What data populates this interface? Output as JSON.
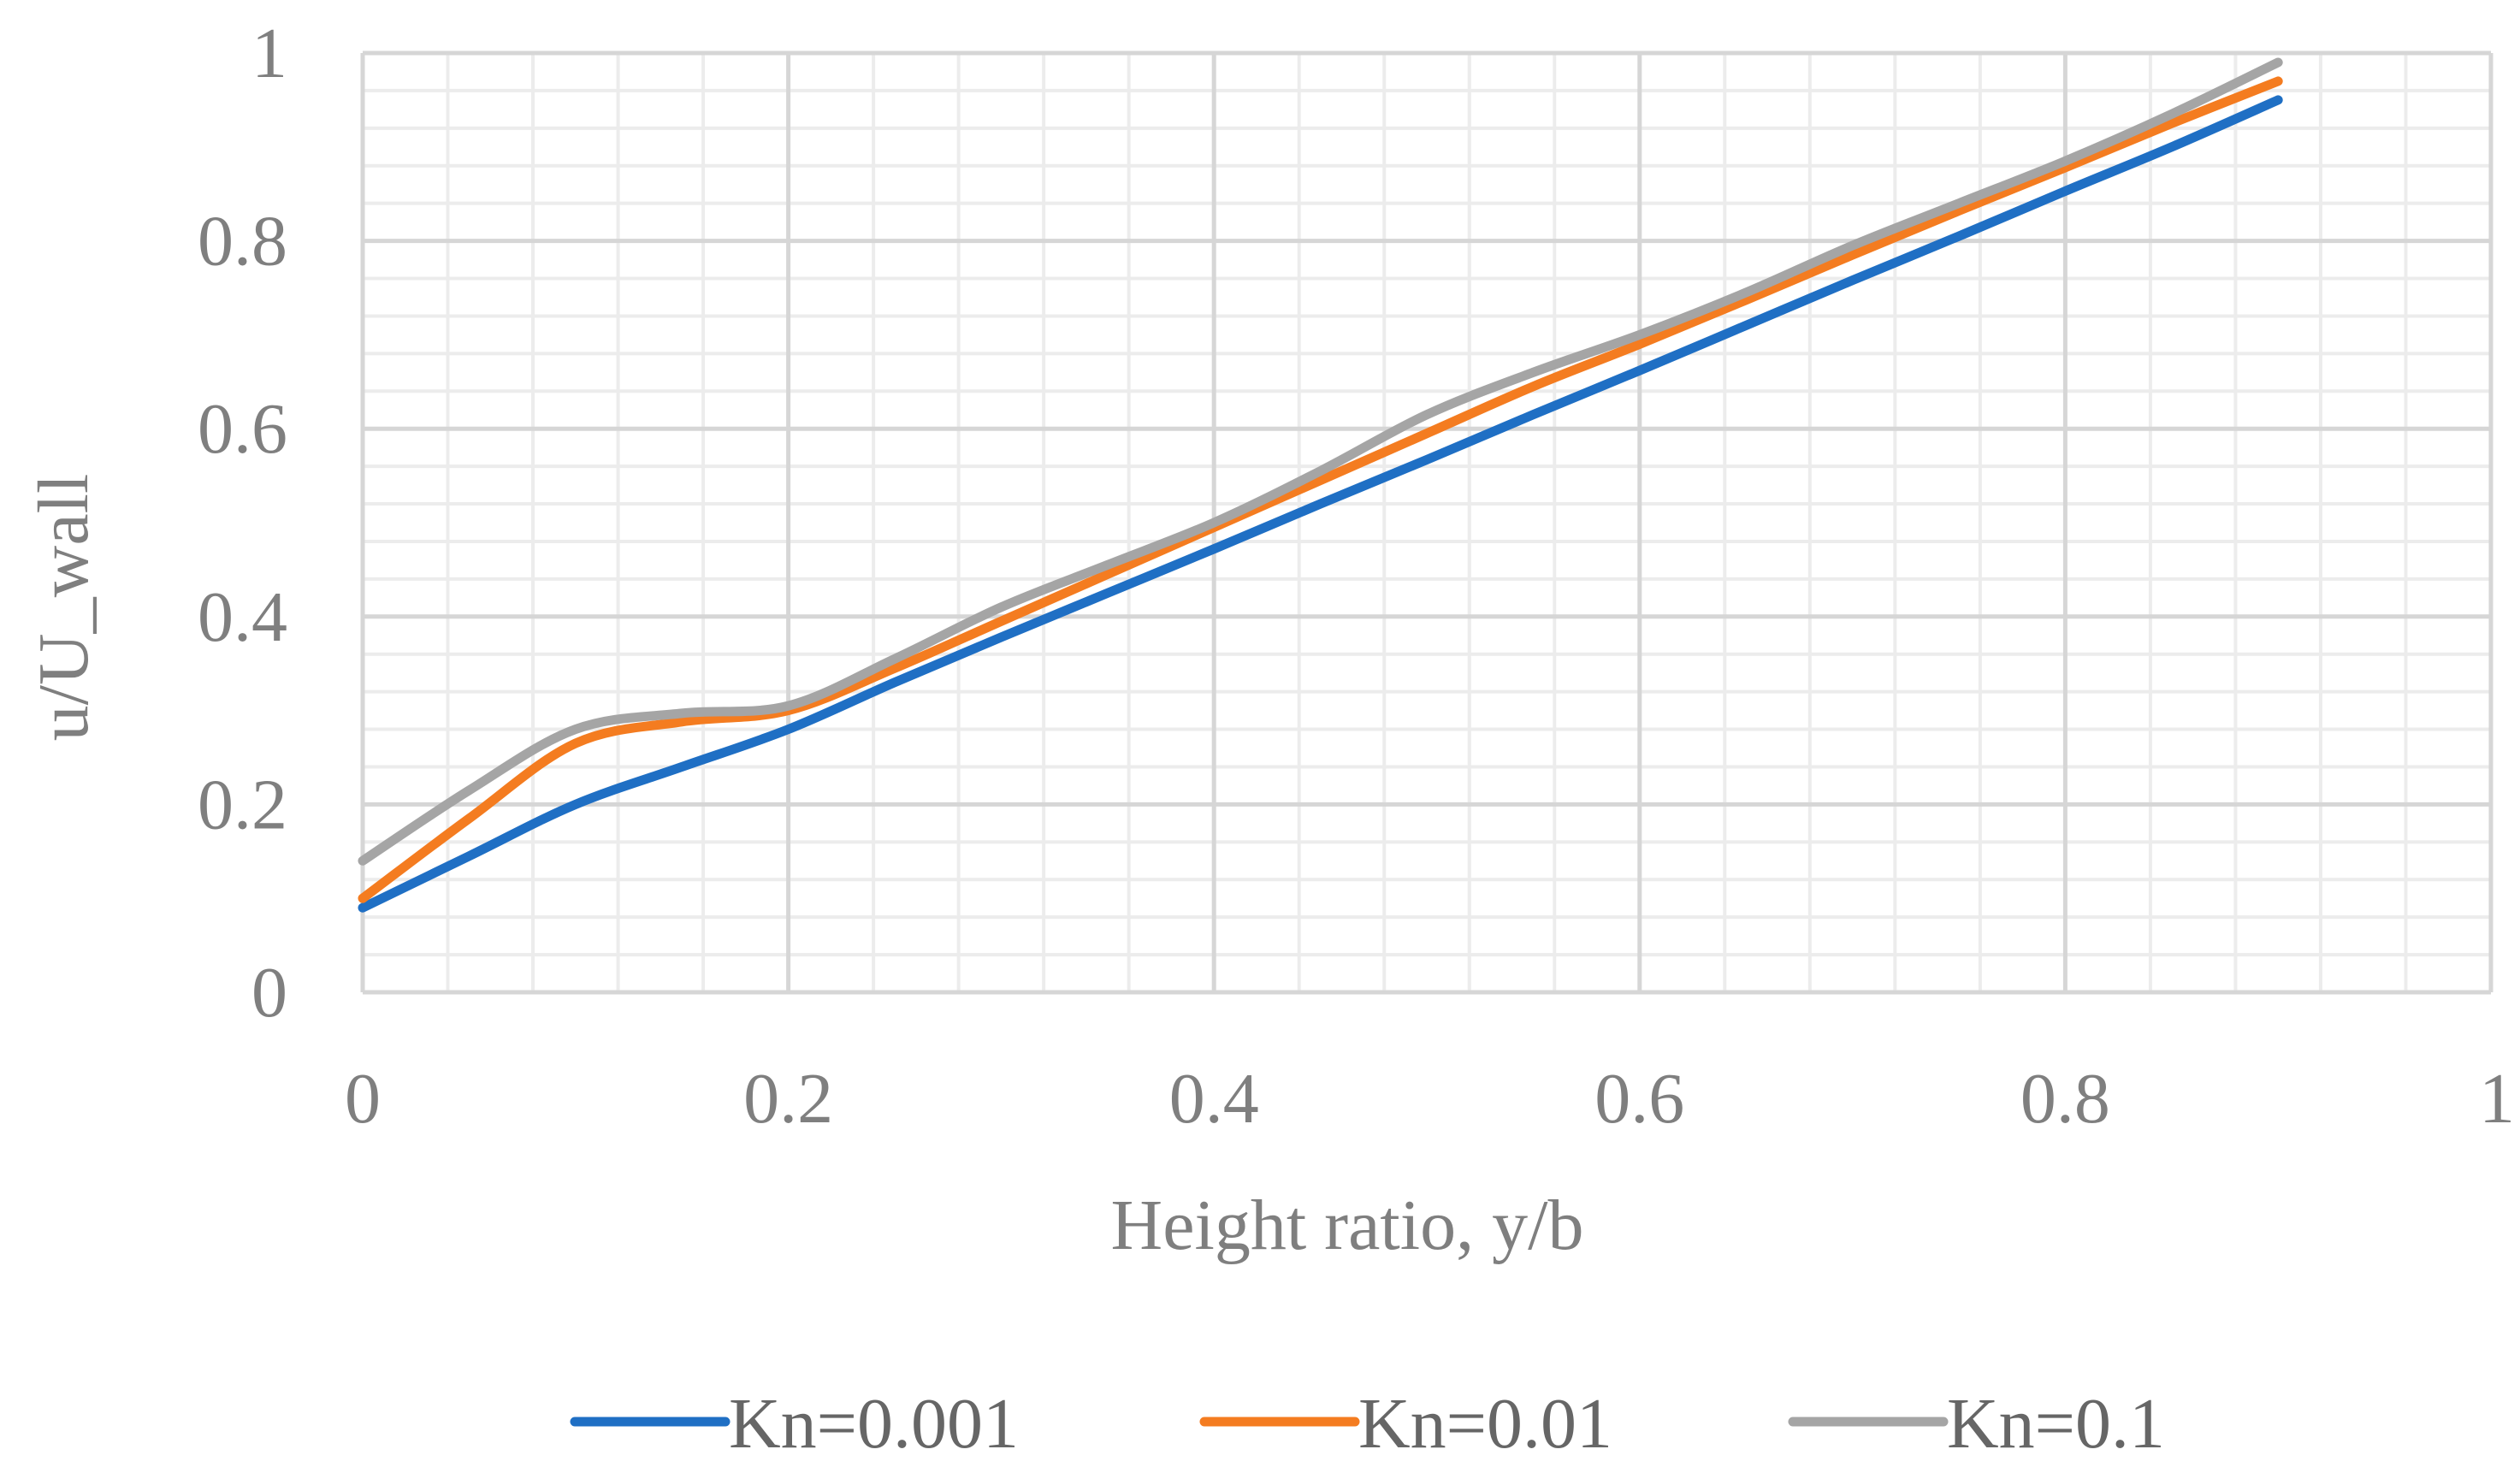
{
  "chart_data": {
    "type": "line",
    "title": "",
    "xlabel": "Height ratio, y/b",
    "ylabel": "u/U_wall",
    "xlim": [
      0,
      1
    ],
    "ylim": [
      0,
      1
    ],
    "x_ticks": [
      "0",
      "0.2",
      "0.4",
      "0.6",
      "0.8",
      "1"
    ],
    "y_ticks": [
      "0",
      "0.2",
      "0.4",
      "0.6",
      "0.8",
      "1"
    ],
    "grid": true,
    "legend_position": "bottom",
    "series": [
      {
        "name": "Kn=0.001",
        "color": "#1f6fc4",
        "x": [
          0,
          0.05,
          0.1,
          0.15,
          0.2,
          0.25,
          0.3,
          0.35,
          0.4,
          0.45,
          0.5,
          0.55,
          0.6,
          0.65,
          0.7,
          0.75,
          0.8,
          0.85,
          0.9
        ],
        "y": [
          0.09,
          0.145,
          0.2,
          0.24,
          0.28,
          0.33,
          0.378,
          0.425,
          0.472,
          0.52,
          0.567,
          0.615,
          0.662,
          0.71,
          0.758,
          0.805,
          0.853,
          0.9,
          0.95
        ]
      },
      {
        "name": "Kn=0.01",
        "color": "#f47c20",
        "x": [
          0,
          0.05,
          0.1,
          0.15,
          0.2,
          0.25,
          0.3,
          0.35,
          0.4,
          0.45,
          0.5,
          0.55,
          0.6,
          0.65,
          0.7,
          0.75,
          0.8,
          0.85,
          0.9
        ],
        "y": [
          0.1,
          0.185,
          0.265,
          0.288,
          0.3,
          0.345,
          0.395,
          0.445,
          0.495,
          0.545,
          0.595,
          0.645,
          0.69,
          0.737,
          0.785,
          0.832,
          0.878,
          0.925,
          0.97
        ]
      },
      {
        "name": "Kn=0.1",
        "color": "#a5a5a5",
        "x": [
          0,
          0.05,
          0.1,
          0.15,
          0.2,
          0.25,
          0.3,
          0.35,
          0.4,
          0.45,
          0.5,
          0.55,
          0.6,
          0.65,
          0.7,
          0.75,
          0.8,
          0.85,
          0.9
        ],
        "y": [
          0.14,
          0.215,
          0.28,
          0.297,
          0.305,
          0.355,
          0.41,
          0.455,
          0.5,
          0.555,
          0.615,
          0.66,
          0.7,
          0.745,
          0.795,
          0.84,
          0.885,
          0.935,
          0.99
        ]
      }
    ]
  }
}
